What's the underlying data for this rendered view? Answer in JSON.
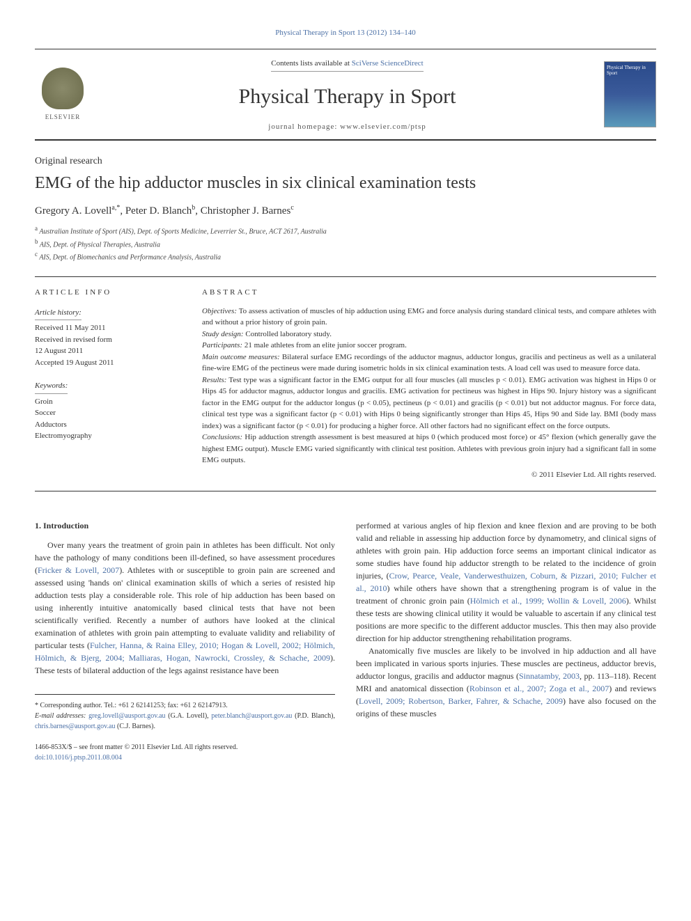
{
  "journal_ref_link": "Physical Therapy in Sport 13 (2012) 134–140",
  "header": {
    "contents_prefix": "Contents lists available at ",
    "contents_link": "SciVerse ScienceDirect",
    "journal_title": "Physical Therapy in Sport",
    "homepage_label": "journal homepage: www.elsevier.com/ptsp",
    "elsevier_label": "ELSEVIER",
    "cover_title": "Physical Therapy in Sport"
  },
  "article_type": "Original research",
  "title": "EMG of the hip adductor muscles in six clinical examination tests",
  "authors_html": "Gregory A. Lovell<sup>a,*</sup>, Peter D. Blanch<sup>b</sup>, Christopher J. Barnes<sup>c</sup>",
  "affiliations": [
    {
      "sup": "a",
      "text": "Australian Institute of Sport (AIS), Dept. of Sports Medicine, Leverrier St., Bruce, ACT 2617, Australia"
    },
    {
      "sup": "b",
      "text": "AIS, Dept. of Physical Therapies, Australia"
    },
    {
      "sup": "c",
      "text": "AIS, Dept. of Biomechanics and Performance Analysis, Australia"
    }
  ],
  "article_info": {
    "heading": "ARTICLE INFO",
    "history_label": "Article history:",
    "history": [
      "Received 11 May 2011",
      "Received in revised form",
      "12 August 2011",
      "Accepted 19 August 2011"
    ],
    "keywords_label": "Keywords:",
    "keywords": [
      "Groin",
      "Soccer",
      "Adductors",
      "Electromyography"
    ]
  },
  "abstract": {
    "heading": "ABSTRACT",
    "sections": [
      {
        "label": "Objectives:",
        "text": "To assess activation of muscles of hip adduction using EMG and force analysis during standard clinical tests, and compare athletes with and without a prior history of groin pain."
      },
      {
        "label": "Study design:",
        "text": "Controlled laboratory study."
      },
      {
        "label": "Participants:",
        "text": "21 male athletes from an elite junior soccer program."
      },
      {
        "label": "Main outcome measures:",
        "text": "Bilateral surface EMG recordings of the adductor magnus, adductor longus, gracilis and pectineus as well as a unilateral fine-wire EMG of the pectineus were made during isometric holds in six clinical examination tests. A load cell was used to measure force data."
      },
      {
        "label": "Results:",
        "text": "Test type was a significant factor in the EMG output for all four muscles (all muscles p < 0.01). EMG activation was highest in Hips 0 or Hips 45 for adductor magnus, adductor longus and gracilis. EMG activation for pectineus was highest in Hips 90. Injury history was a significant factor in the EMG output for the adductor longus (p < 0.05), pectineus (p < 0.01) and gracilis (p < 0.01) but not adductor magnus. For force data, clinical test type was a significant factor (p < 0.01) with Hips 0 being significantly stronger than Hips 45, Hips 90 and Side lay. BMI (body mass index) was a significant factor (p < 0.01) for producing a higher force. All other factors had no significant effect on the force outputs."
      },
      {
        "label": "Conclusions:",
        "text": "Hip adduction strength assessment is best measured at hips 0 (which produced most force) or 45° flexion (which generally gave the highest EMG output). Muscle EMG varied significantly with clinical test position. Athletes with previous groin injury had a significant fall in some EMG outputs."
      }
    ],
    "copyright": "© 2011 Elsevier Ltd. All rights reserved."
  },
  "body": {
    "section_heading": "1. Introduction",
    "col_left": "Over many years the treatment of groin pain in athletes has been difficult. Not only have the pathology of many conditions been ill-defined, so have assessment procedures (<a>Fricker & Lovell, 2007</a>). Athletes with or susceptible to groin pain are screened and assessed using 'hands on' clinical examination skills of which a series of resisted hip adduction tests play a considerable role. This role of hip adduction has been based on using inherently intuitive anatomically based clinical tests that have not been scientifically verified. Recently a number of authors have looked at the clinical examination of athletes with groin pain attempting to evaluate validity and reliability of particular tests (<a>Fulcher, Hanna, & Raina Elley, 2010; Hogan & Lovell, 2002; Hölmich, Hölmich, & Bjerg, 2004; Malliaras, Hogan, Nawrocki, Crossley, & Schache, 2009</a>). These tests of bilateral adduction of the legs against resistance have been",
    "col_right_p1": "performed at various angles of hip flexion and knee flexion and are proving to be both valid and reliable in assessing hip adduction force by dynamometry, and clinical signs of athletes with groin pain. Hip adduction force seems an important clinical indicator as some studies have found hip adductor strength to be related to the incidence of groin injuries, (<a>Crow, Pearce, Veale, Vanderwesthuizen, Coburn, & Pizzari, 2010; Fulcher et al., 2010</a>) while others have shown that a strengthening program is of value in the treatment of chronic groin pain (<a>Hölmich et al., 1999; Wollin & Lovell, 2006</a>). Whilst these tests are showing clinical utility it would be valuable to ascertain if any clinical test positions are more specific to the different adductor muscles. This then may also provide direction for hip adductor strengthening rehabilitation programs.",
    "col_right_p2": "Anatomically five muscles are likely to be involved in hip adduction and all have been implicated in various sports injuries. These muscles are pectineus, adductor brevis, adductor longus, gracilis and adductor magnus (<a>Sinnatamby, 2003</a>, pp. 113–118). Recent MRI and anatomical dissection (<a>Robinson et al., 2007; Zoga et al., 2007</a>) and reviews (<a>Lovell, 2009; Robertson, Barker, Fahrer, & Schache, 2009</a>) have also focused on the origins of these muscles"
  },
  "footnote": {
    "corresponding": "* Corresponding author. Tel.: +61 2 62141253; fax: +61 2 62147913.",
    "emails_label": "E-mail addresses:",
    "emails": [
      {
        "addr": "greg.lovell@ausport.gov.au",
        "person": "(G.A. Lovell)"
      },
      {
        "addr": "peter.blanch@ausport.gov.au",
        "person": "(P.D. Blanch)"
      },
      {
        "addr": "chris.barnes@ausport.gov.au",
        "person": "(C.J. Barnes)."
      }
    ]
  },
  "footer": {
    "issn": "1466-853X/$ – see front matter © 2011 Elsevier Ltd. All rights reserved.",
    "doi": "doi:10.1016/j.ptsp.2011.08.004"
  },
  "colors": {
    "link": "#4a6fa5",
    "text": "#333333",
    "border": "#333333"
  }
}
